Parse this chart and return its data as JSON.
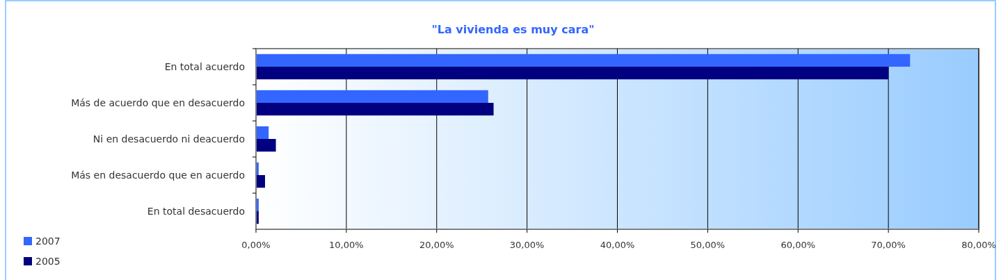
{
  "chart_data": {
    "type": "bar",
    "orientation": "horizontal",
    "title": "\"La vivienda es muy cara\"",
    "categories": [
      "En total acuerdo",
      "Más de acuerdo que en desacuerdo",
      "Ni en desacuerdo ni deacuerdo",
      "Más en desacuerdo que en acuerdo",
      "En total desacuerdo"
    ],
    "series": [
      {
        "name": "2007",
        "color": "#3366ff",
        "values": [
          72.4,
          25.7,
          1.4,
          0.3,
          0.3
        ]
      },
      {
        "name": "2005",
        "color": "#000080",
        "values": [
          70.0,
          26.3,
          2.2,
          1.0,
          0.3
        ]
      }
    ],
    "xlim": [
      0,
      80
    ],
    "xticks": [
      {
        "value": 0,
        "label": "0,00%"
      },
      {
        "value": 10,
        "label": "10,00%"
      },
      {
        "value": 20,
        "label": "20,00%"
      },
      {
        "value": 30,
        "label": "30,00%"
      },
      {
        "value": 40,
        "label": "40,00%"
      },
      {
        "value": 50,
        "label": "50,00%"
      },
      {
        "value": 60,
        "label": "60,00%"
      },
      {
        "value": 70,
        "label": "70,00%"
      },
      {
        "value": 80,
        "label": "80,00%"
      }
    ],
    "grid": "x",
    "legend": "bottom left"
  }
}
